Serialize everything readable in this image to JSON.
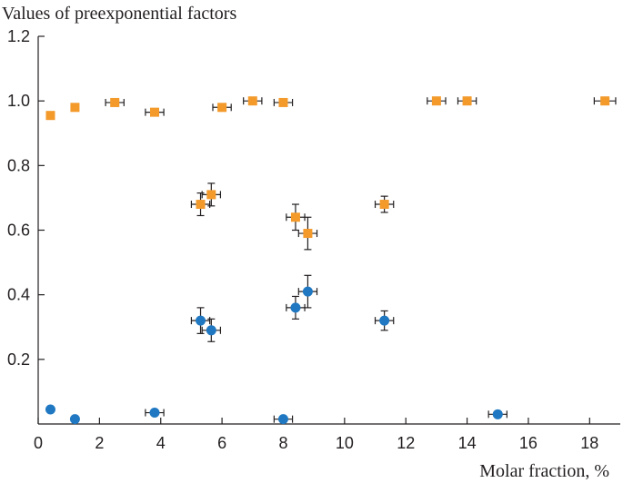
{
  "chart_data": {
    "type": "scatter",
    "title": "",
    "ylabel": "Values of preexponential factors",
    "xlabel": "Molar fraction, %",
    "xlim": [
      0,
      19
    ],
    "ylim": [
      0,
      1.2
    ],
    "x_ticks": [
      "0",
      "2",
      "4",
      "6",
      "8",
      "10",
      "12",
      "14",
      "16",
      "18"
    ],
    "y_ticks": [
      "0.2",
      "0.4",
      "0.6",
      "0.8",
      "1.0",
      "1.2"
    ],
    "grid": false,
    "series": [
      {
        "marker": "square",
        "color": "#f39a2b",
        "points": [
          {
            "x": 0.4,
            "y": 0.955
          },
          {
            "x": 1.2,
            "y": 0.98
          },
          {
            "x": 2.5,
            "y": 0.995,
            "xerr": 0.3
          },
          {
            "x": 3.8,
            "y": 0.965,
            "xerr": 0.3
          },
          {
            "x": 6.0,
            "y": 0.98,
            "xerr": 0.3
          },
          {
            "x": 7.0,
            "y": 1.0,
            "xerr": 0.3
          },
          {
            "x": 8.0,
            "y": 0.995,
            "xerr": 0.3
          },
          {
            "x": 13.0,
            "y": 1.0,
            "xerr": 0.3
          },
          {
            "x": 14.0,
            "y": 1.0,
            "xerr": 0.3
          },
          {
            "x": 18.5,
            "y": 1.0,
            "xerr": 0.35
          },
          {
            "x": 5.3,
            "y": 0.68,
            "xerr": 0.3,
            "yerr": 0.035
          },
          {
            "x": 5.65,
            "y": 0.71,
            "xerr": 0.3,
            "yerr": 0.035
          },
          {
            "x": 8.4,
            "y": 0.64,
            "xerr": 0.3,
            "yerr": 0.04
          },
          {
            "x": 8.8,
            "y": 0.59,
            "xerr": 0.3,
            "yerr": 0.05
          },
          {
            "x": 11.3,
            "y": 0.68,
            "xerr": 0.3,
            "yerr": 0.025
          }
        ]
      },
      {
        "marker": "circle",
        "color": "#1f78c1",
        "points": [
          {
            "x": 0.4,
            "y": 0.045
          },
          {
            "x": 1.2,
            "y": 0.015
          },
          {
            "x": 3.8,
            "y": 0.035,
            "xerr": 0.3
          },
          {
            "x": 8.0,
            "y": 0.015,
            "xerr": 0.3
          },
          {
            "x": 15.0,
            "y": 0.03,
            "xerr": 0.3
          },
          {
            "x": 5.3,
            "y": 0.32,
            "xerr": 0.3,
            "yerr": 0.04
          },
          {
            "x": 5.65,
            "y": 0.29,
            "xerr": 0.3,
            "yerr": 0.035
          },
          {
            "x": 8.4,
            "y": 0.36,
            "xerr": 0.3,
            "yerr": 0.035
          },
          {
            "x": 8.8,
            "y": 0.41,
            "xerr": 0.3,
            "yerr": 0.05
          },
          {
            "x": 11.3,
            "y": 0.32,
            "xerr": 0.3,
            "yerr": 0.03
          }
        ]
      }
    ]
  }
}
